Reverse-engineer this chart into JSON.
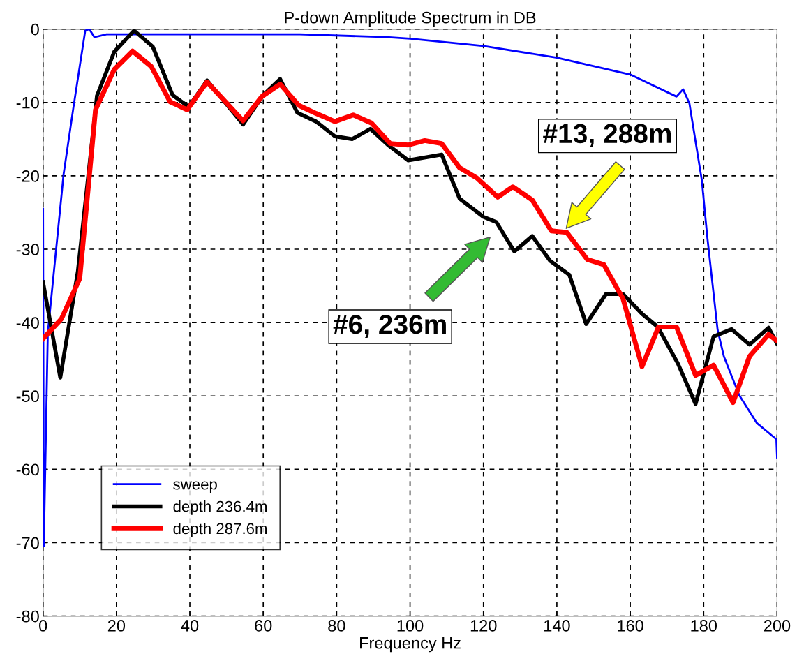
{
  "chart_data": {
    "type": "line",
    "title": "P-down Amplitude Spectrum in DB",
    "xlabel": "Frequency Hz",
    "xlim": [
      0,
      200
    ],
    "ylim": [
      -80,
      0
    ],
    "xticks": [
      0,
      20,
      40,
      60,
      80,
      100,
      120,
      140,
      160,
      180,
      200
    ],
    "yticks": [
      -80,
      -70,
      -60,
      -50,
      -40,
      -30,
      -20,
      -10,
      0
    ],
    "grid": true,
    "legend": "bottom left",
    "line_style": "solid",
    "marker": "none",
    "series": [
      {
        "name": "sweep",
        "color": "#0000ff",
        "x": [
          0,
          0.2,
          1.3,
          5.6,
          8.3,
          11.5,
          12.6,
          14,
          17.3,
          40,
          70,
          93.6,
          100,
          120,
          140,
          160,
          172.6,
          174.4,
          176.1,
          179.5,
          181,
          183.8,
          185.5,
          189.7,
          194.5,
          199.8,
          200
        ],
        "values": [
          -24.5,
          -70.5,
          -41.4,
          -19.8,
          -10.6,
          -0.2,
          0,
          -1.1,
          -0.7,
          -0.7,
          -0.7,
          -1.1,
          -1.3,
          -2.3,
          -3.9,
          -6.2,
          -9.2,
          -8.2,
          -10.1,
          -20.6,
          -28.4,
          -41,
          -44.6,
          -49.9,
          -53.7,
          -55.9,
          -58.4
        ]
      },
      {
        "name": "depth 236.4m",
        "color": "#000000",
        "x": [
          0,
          4.7,
          9.5,
          14.7,
          19.4,
          24.8,
          29.9,
          35.3,
          39.7,
          44.7,
          54.5,
          60,
          64.6,
          69.3,
          74.4,
          79.5,
          84.2,
          89.2,
          94,
          99.5,
          108.6,
          113.5,
          120,
          123.5,
          128.4,
          133.3,
          138.2,
          143.4,
          148,
          153.4,
          158,
          163.2,
          167.5,
          173,
          177.8,
          182.7,
          187.6,
          192.5,
          197.7,
          200
        ],
        "values": [
          -34.5,
          -47.5,
          -33,
          -9.1,
          -3.1,
          -0.2,
          -2.4,
          -9,
          -10.6,
          -7,
          -13,
          -9,
          -6.8,
          -11.4,
          -12.6,
          -14.6,
          -15,
          -13.6,
          -15.8,
          -17.9,
          -17.1,
          -23.1,
          -25.6,
          -26.3,
          -30.3,
          -28.2,
          -31.6,
          -33.5,
          -40.2,
          -36.1,
          -36.1,
          -38.8,
          -40.6,
          -45.6,
          -51.1,
          -41.9,
          -40.9,
          -43,
          -40.7,
          -42.9
        ]
      },
      {
        "name": "depth 287.6m",
        "color": "#ff0000",
        "x": [
          0,
          5,
          10,
          14.3,
          19.4,
          24.4,
          29.5,
          34.6,
          39.3,
          44.7,
          54.5,
          59.6,
          64.6,
          69.7,
          74.4,
          79.5,
          84.5,
          89.5,
          94.6,
          99.5,
          104,
          108.6,
          113.5,
          118.2,
          123.9,
          128,
          133.3,
          138.5,
          142.7,
          148.3,
          152.8,
          156.6,
          158,
          163.2,
          167.7,
          172.6,
          177.8,
          182.7,
          188,
          192.5,
          197.7,
          200
        ],
        "values": [
          -42.2,
          -39.5,
          -34,
          -11,
          -5.5,
          -3,
          -5.1,
          -9.9,
          -11,
          -7.2,
          -12.5,
          -9.2,
          -7.5,
          -10.4,
          -11.5,
          -12.6,
          -11.7,
          -12.8,
          -15.6,
          -15.8,
          -15.2,
          -15.6,
          -18.9,
          -20.3,
          -22.9,
          -21.5,
          -23.3,
          -27.5,
          -27.7,
          -31.4,
          -32.1,
          -35.5,
          -36.7,
          -46,
          -40.6,
          -40.6,
          -47.2,
          -45.8,
          -50.9,
          -44.6,
          -41.6,
          -42.5
        ]
      }
    ],
    "annotations": [
      "#13, 288m",
      "#6, 236m"
    ]
  }
}
